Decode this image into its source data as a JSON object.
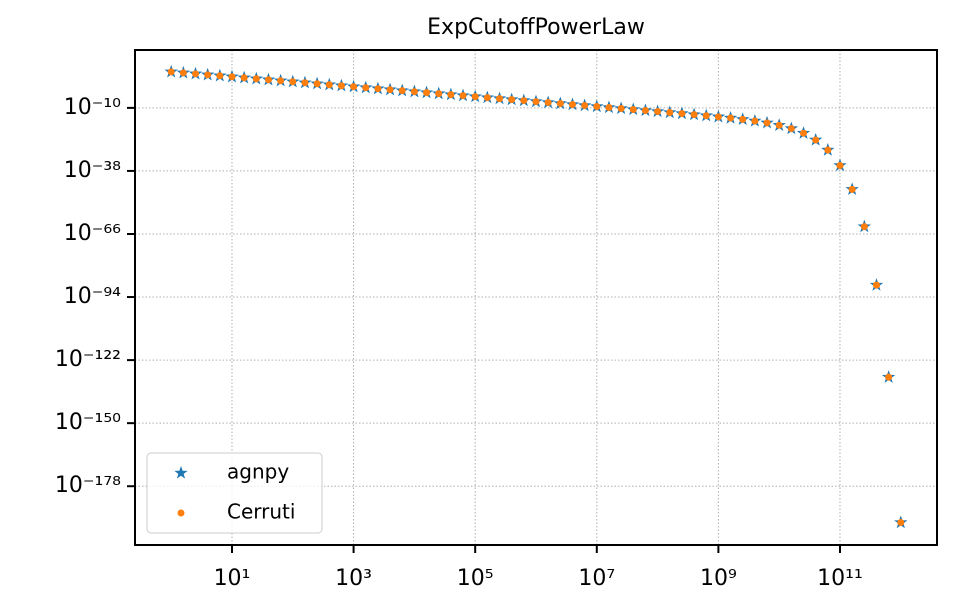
{
  "chart_data": {
    "type": "scatter",
    "title": "ExpCutoffPowerLaw",
    "x": [
      1,
      1.585,
      2.512,
      3.981,
      6.31,
      10.0,
      15.85,
      25.12,
      39.81,
      63.1,
      100.0,
      158.5,
      251.2,
      398.1,
      631.0,
      1000.0,
      1585.0,
      2512.0,
      3981.0,
      6310.0,
      10000.0,
      15850.0,
      25120.0,
      39810.0,
      63100.0,
      100000.0,
      158500.0,
      251200.0,
      398100.0,
      631000.0,
      1000000.0,
      1585000.0,
      2512000.0,
      3981000.0,
      6310000.0,
      10000000.0,
      15850000.0,
      25120000.0,
      39810000.0,
      63100000.0,
      100000000.0,
      158500000.0,
      251200000.0,
      398100000.0,
      631000000.0,
      1000000000.0,
      1585000000.0,
      2512000000.0,
      3981000000.0,
      6310000000.0,
      10000000000.0,
      15850000000.0,
      25120000000.0,
      39810000000.0,
      63100000000.0,
      100000000000.0,
      158500000000.0,
      251200000000.0,
      398100000000.0,
      631000000000.0,
      1000000000000.0
    ],
    "series": [
      {
        "name": "agnpy",
        "color": "#1f77b4",
        "marker": "star",
        "values": [
          1000000.0,
          363100.0,
          131800.0,
          47860.0,
          17380.0,
          6310.0,
          2291.0,
          831.8,
          302.0,
          109.6,
          39.81,
          14.45,
          5.248,
          1.905,
          0.6918,
          0.2512,
          0.0912,
          0.03311,
          0.01202,
          0.004365,
          0.001585,
          0.0005754,
          0.0002089,
          7.586e-05,
          2.754e-05,
          1e-05,
          3.631e-06,
          1.318e-06,
          4.786e-07,
          1.738e-07,
          6.31e-08,
          2.291e-08,
          8.318e-09,
          3.02e-09,
          1.096e-09,
          3.981e-10,
          1.445e-10,
          5.248e-11,
          1.905e-11,
          6.918e-12,
          2.512e-12,
          8.56e-13,
          3e-13,
          1.025e-13,
          3.39e-14,
          1.062e-14,
          3.052e-15,
          7.65e-16,
          1.543e-16,
          2.208e-17,
          1.832e-18,
          6.4e-20,
          5.7e-22,
          5.79e-25,
          1.897e-29,
          2.67e-36,
          6.68e-47,
          1.905e-63,
          2.04e-89,
          2.63e-130,
          7.41e-195
        ]
      },
      {
        "name": "Cerruti",
        "color": "#ff7f0e",
        "marker": "dot",
        "values": [
          1000000.0,
          363100.0,
          131800.0,
          47860.0,
          17380.0,
          6310.0,
          2291.0,
          831.8,
          302.0,
          109.6,
          39.81,
          14.45,
          5.248,
          1.905,
          0.6918,
          0.2512,
          0.0912,
          0.03311,
          0.01202,
          0.004365,
          0.001585,
          0.0005754,
          0.0002089,
          7.586e-05,
          2.754e-05,
          1e-05,
          3.631e-06,
          1.318e-06,
          4.786e-07,
          1.738e-07,
          6.31e-08,
          2.291e-08,
          8.318e-09,
          3.02e-09,
          1.096e-09,
          3.981e-10,
          1.445e-10,
          5.248e-11,
          1.905e-11,
          6.918e-12,
          2.512e-12,
          8.56e-13,
          3e-13,
          1.025e-13,
          3.39e-14,
          1.062e-14,
          3.052e-15,
          7.65e-16,
          1.543e-16,
          2.208e-17,
          1.832e-18,
          6.4e-20,
          5.7e-22,
          5.79e-25,
          1.897e-29,
          2.67e-36,
          6.68e-47,
          1.905e-63,
          2.04e-89,
          2.63e-130,
          7.41e-195
        ]
      }
    ],
    "xscale": "log",
    "yscale": "log",
    "xlim": [
      0.254,
      3940000000000.0
    ],
    "ylim": [
      7.9e-205,
      5000000000000000.0
    ],
    "xticks": [
      {
        "value": 10,
        "label": "10¹"
      },
      {
        "value": 1000.0,
        "label": "10³"
      },
      {
        "value": 100000.0,
        "label": "10⁵"
      },
      {
        "value": 10000000.0,
        "label": "10⁷"
      },
      {
        "value": 1000000000.0,
        "label": "10⁹"
      },
      {
        "value": 100000000000.0,
        "label": "10¹¹"
      }
    ],
    "yticks": [
      {
        "value": 1e-10,
        "label": "10⁻¹⁰"
      },
      {
        "value": 1e-38,
        "label": "10⁻³⁸"
      },
      {
        "value": 1e-66,
        "label": "10⁻⁶⁶"
      },
      {
        "value": 1e-94,
        "label": "10⁻⁹⁴"
      },
      {
        "value": 1e-122,
        "label": "10⁻¹²²"
      },
      {
        "value": 1e-150,
        "label": "10⁻¹⁵⁰"
      },
      {
        "value": 1e-178,
        "label": "10⁻¹⁷⁸"
      }
    ],
    "grid": true,
    "legend": "lower left"
  }
}
